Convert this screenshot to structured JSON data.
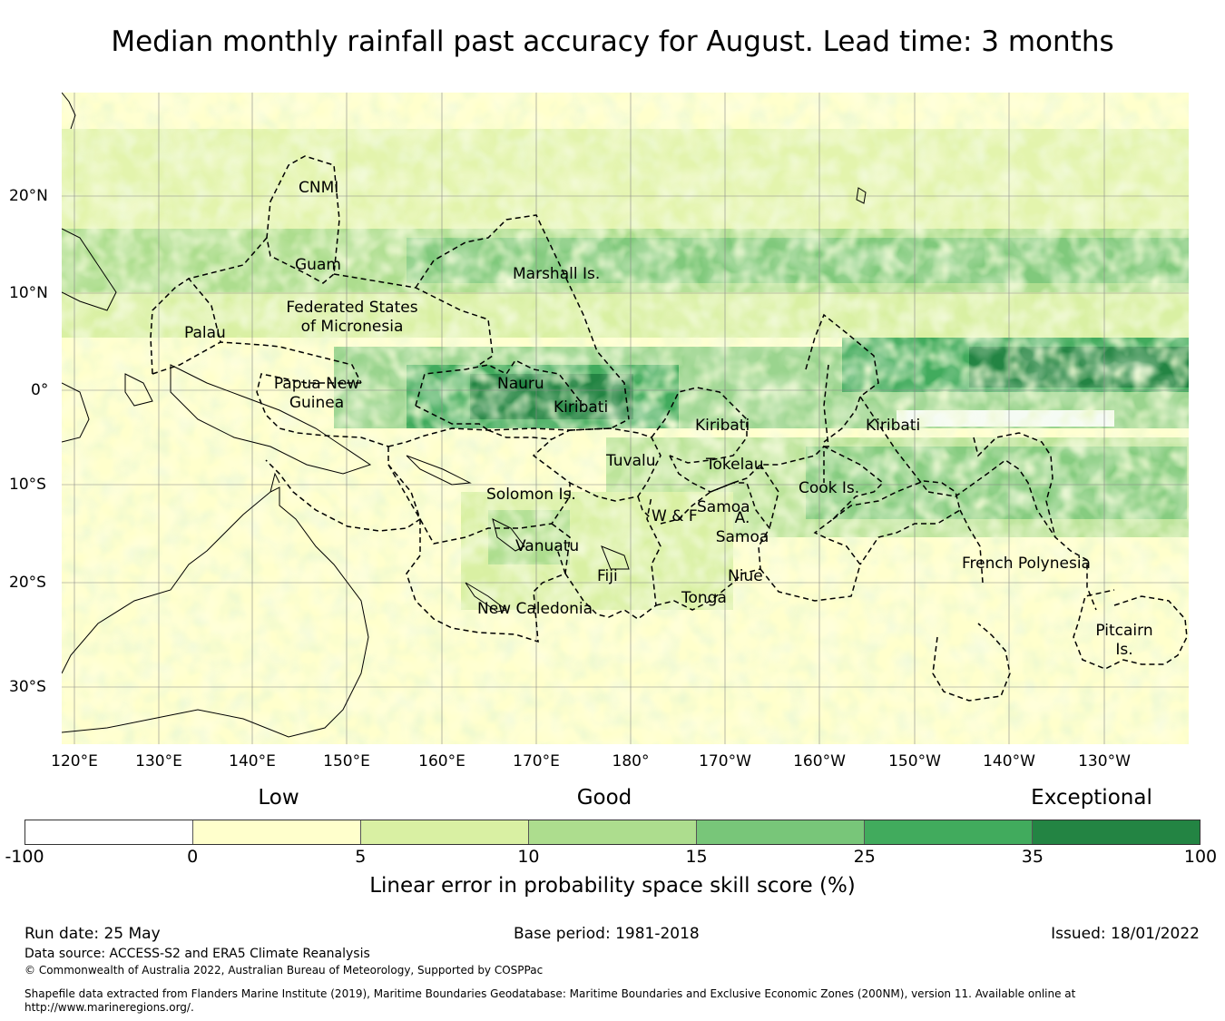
{
  "title": "Median monthly rainfall past accuracy for August. Lead time: 3 months",
  "map": {
    "lon_ticks": [
      "120°E",
      "130°E",
      "140°E",
      "150°E",
      "160°E",
      "170°E",
      "180°",
      "170°W",
      "160°W",
      "150°W",
      "140°W",
      "130°W"
    ],
    "lat_ticks": [
      "20°N",
      "10°N",
      "0°",
      "10°S",
      "20°S",
      "30°S"
    ],
    "regions": [
      {
        "name": "CNMI",
        "lines": [
          "CNMI"
        ]
      },
      {
        "name": "Guam",
        "lines": [
          "Guam"
        ]
      },
      {
        "name": "Marshall Is.",
        "lines": [
          "Marshall Is."
        ]
      },
      {
        "name": "Federated States of Micronesia",
        "lines": [
          "Federated States",
          "of Micronesia"
        ]
      },
      {
        "name": "Palau",
        "lines": [
          "Palau"
        ]
      },
      {
        "name": "Papua New Guinea",
        "lines": [
          "Papua New",
          "Guinea"
        ]
      },
      {
        "name": "Nauru",
        "lines": [
          "Nauru"
        ]
      },
      {
        "name": "Kiribati (Gilbert)",
        "lines": [
          "Kiribati"
        ]
      },
      {
        "name": "Kiribati (Phoenix)",
        "lines": [
          "Kiribati"
        ]
      },
      {
        "name": "Kiribati (Line)",
        "lines": [
          "Kiribati"
        ]
      },
      {
        "name": "Tuvalu",
        "lines": [
          "Tuvalu"
        ]
      },
      {
        "name": "Tokelau",
        "lines": [
          "Tokelau"
        ]
      },
      {
        "name": "Solomon Is.",
        "lines": [
          "Solomon Is."
        ]
      },
      {
        "name": "Samoa",
        "lines": [
          "Samoa"
        ]
      },
      {
        "name": "W & F",
        "lines": [
          "W & F"
        ]
      },
      {
        "name": "A. Samoa",
        "lines": [
          "A.",
          "Samoa"
        ]
      },
      {
        "name": "Cook Is.",
        "lines": [
          "Cook Is."
        ]
      },
      {
        "name": "Vanuatu",
        "lines": [
          "Vanuatu"
        ]
      },
      {
        "name": "Fiji",
        "lines": [
          "Fiji"
        ]
      },
      {
        "name": "Niue",
        "lines": [
          "Niue"
        ]
      },
      {
        "name": "Tonga",
        "lines": [
          "Tonga"
        ]
      },
      {
        "name": "New Caledonia",
        "lines": [
          "New Caledonia"
        ]
      },
      {
        "name": "French Polynesia",
        "lines": [
          "French Polynesia"
        ]
      },
      {
        "name": "Pitcairn Is.",
        "lines": [
          "Pitcairn",
          "Is."
        ]
      }
    ]
  },
  "legend": {
    "categories": [
      "Low",
      "Good",
      "Exceptional"
    ],
    "ticks": [
      "-100",
      "0",
      "5",
      "10",
      "15",
      "25",
      "35",
      "100"
    ],
    "colors": [
      "#ffffff",
      "#ffffcc",
      "#d9f0a3",
      "#addd8e",
      "#78c679",
      "#41ab5d",
      "#238443"
    ],
    "title": "Linear error in probability space skill score (%)"
  },
  "footer": {
    "run_date": "Run date: 25 May",
    "base_period": "Base period: 1981-2018",
    "issued": "Issued: 18/01/2022",
    "data_source": "Data source: ACCESS-S2 and ERA5 Climate Reanalysis",
    "copyright": "© Commonwealth of Australia 2022, Australian Bureau of Meteorology, Supported by COSPPac",
    "shapefile_1": "Shapefile data extracted from Flanders Marine Institute (2019), Maritime Boundaries Geodatabase: Maritime Boundaries and Exclusive Economic Zones (200NM), version 11. Available online at",
    "shapefile_2": "http://www.marineregions.org/."
  }
}
